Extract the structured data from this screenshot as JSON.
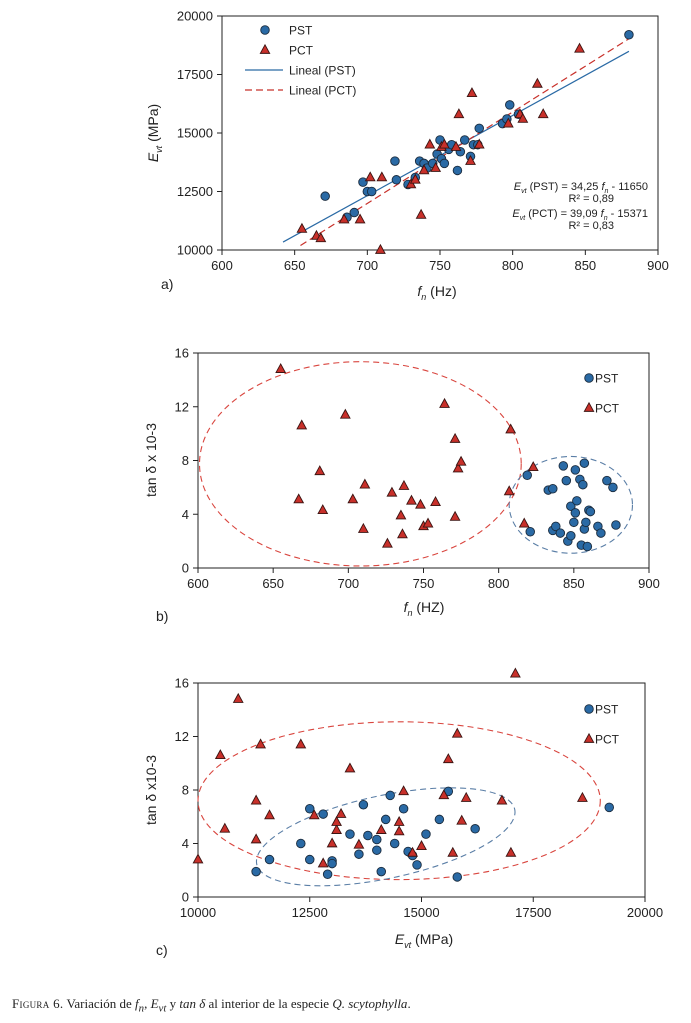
{
  "caption": {
    "label": "Figura 6.",
    "text_pre": " Variación de ",
    "fn": "f",
    "fn_sub": "n",
    "sep1": ", ",
    "evt": "E",
    "evt_sub": "vt",
    "sep2": " y ",
    "tand": "tan δ",
    "text_mid": " al interior de la especie ",
    "species": "Q. scytophylla",
    "end": "."
  },
  "colors": {
    "pst": "#2a6aa5",
    "pct": "#c8302a",
    "pst_ellipse": "#5a7ea6",
    "pct_ellipse": "#d9453e"
  },
  "chart_data": [
    {
      "id": "a",
      "panel_label": "a)",
      "type": "scatter",
      "xlabel": "f",
      "xlabel_sub": "n",
      "xlabel_unit": " (Hz)",
      "ylabel": "E",
      "ylabel_sub": "vt",
      "ylabel_unit": " (MPa)",
      "xlim": [
        600,
        900
      ],
      "ylim": [
        10000,
        20000
      ],
      "xticks": [
        600,
        650,
        700,
        750,
        800,
        850,
        900
      ],
      "yticks": [
        10000,
        12500,
        15000,
        17500,
        20000
      ],
      "legend": [
        {
          "label": "PST",
          "marker": "circle"
        },
        {
          "label": "PCT",
          "marker": "triangle"
        },
        {
          "label": "Lineal (PST)",
          "line": "solid"
        },
        {
          "label": "Lineal (PCT)",
          "line": "dashed"
        }
      ],
      "equations": [
        {
          "line1_a": "E",
          "line1_sub": "vt",
          "line1_b": " (PST) = 34,25 ",
          "line1_c": "f",
          "line1_sub2": "n",
          "line1_d": " - 11650",
          "line2": "R² = 0,89"
        },
        {
          "line1_a": "E",
          "line1_sub": "vt",
          "line1_b": " (PCT) = 39,09 ",
          "line1_c": "f",
          "line1_sub2": "n",
          "line1_d": " - 15371",
          "line2": "R² = 0,83"
        }
      ],
      "trendlines": [
        {
          "series": "PST",
          "slope": 34.25,
          "intercept": -11650,
          "x_range": [
            642,
            880
          ],
          "style": "solid"
        },
        {
          "series": "PCT",
          "slope": 39.09,
          "intercept": -15371,
          "x_range": [
            654,
            880
          ],
          "style": "dashed"
        }
      ],
      "series": [
        {
          "name": "PST",
          "marker": "circle",
          "points": [
            [
              671,
              12300
            ],
            [
              686,
              11400
            ],
            [
              691,
              11600
            ],
            [
              697,
              12900
            ],
            [
              700,
              12500
            ],
            [
              703,
              12500
            ],
            [
              719,
              13800
            ],
            [
              720,
              13000
            ],
            [
              728,
              12800
            ],
            [
              733,
              13100
            ],
            [
              736,
              13800
            ],
            [
              739,
              13700
            ],
            [
              741,
              13500
            ],
            [
              745,
              13700
            ],
            [
              748,
              14100
            ],
            [
              750,
              14700
            ],
            [
              751,
              13900
            ],
            [
              753,
              13700
            ],
            [
              756,
              14300
            ],
            [
              758,
              14500
            ],
            [
              762,
              13400
            ],
            [
              764,
              14200
            ],
            [
              767,
              14700
            ],
            [
              771,
              14000
            ],
            [
              773,
              14500
            ],
            [
              776,
              14500
            ],
            [
              777,
              15200
            ],
            [
              793,
              15400
            ],
            [
              796,
              15600
            ],
            [
              798,
              16200
            ],
            [
              804,
              15800
            ],
            [
              880,
              19200
            ]
          ]
        },
        {
          "name": "PCT",
          "marker": "triangle",
          "points": [
            [
              655,
              10900
            ],
            [
              665,
              10600
            ],
            [
              668,
              10500
            ],
            [
              684,
              11300
            ],
            [
              695,
              11300
            ],
            [
              702,
              13100
            ],
            [
              709,
              10000
            ],
            [
              710,
              13100
            ],
            [
              730,
              12800
            ],
            [
              733,
              13000
            ],
            [
              737,
              11500
            ],
            [
              739,
              13400
            ],
            [
              743,
              14500
            ],
            [
              747,
              13500
            ],
            [
              751,
              14400
            ],
            [
              753,
              14500
            ],
            [
              761,
              14400
            ],
            [
              763,
              15800
            ],
            [
              771,
              13800
            ],
            [
              772,
              16700
            ],
            [
              777,
              14500
            ],
            [
              797,
              15400
            ],
            [
              805,
              15800
            ],
            [
              807,
              15600
            ],
            [
              817,
              17100
            ],
            [
              821,
              15800
            ],
            [
              846,
              18600
            ]
          ]
        }
      ]
    },
    {
      "id": "b",
      "panel_label": "b)",
      "type": "scatter",
      "xlabel": "f",
      "xlabel_sub": "n",
      "xlabel_unit": " (HZ)",
      "ylabel": "tan δ  x 10-3",
      "xlim": [
        600,
        900
      ],
      "ylim": [
        0,
        16
      ],
      "xticks": [
        600,
        650,
        700,
        750,
        800,
        850,
        900
      ],
      "yticks": [
        0,
        4,
        8,
        12,
        16
      ],
      "legend": [
        {
          "label": "PST",
          "marker": "circle"
        },
        {
          "label": "PCT",
          "marker": "triangle"
        }
      ],
      "ellipses": [
        {
          "series": "PCT",
          "center": [
            708,
            7.75
          ],
          "rx": 107,
          "ry": 7.6,
          "rotate": 0
        },
        {
          "series": "PST",
          "center": [
            848,
            4.7
          ],
          "rx": 41,
          "ry": 3.6,
          "rotate": 0
        }
      ],
      "series": [
        {
          "name": "PST",
          "marker": "circle",
          "points": [
            [
              819,
              6.9
            ],
            [
              821,
              2.7
            ],
            [
              833,
              5.8
            ],
            [
              836,
              2.8
            ],
            [
              836,
              5.9
            ],
            [
              838,
              3.1
            ],
            [
              841,
              2.6
            ],
            [
              843,
              7.6
            ],
            [
              845,
              6.5
            ],
            [
              846,
              2.0
            ],
            [
              848,
              4.6
            ],
            [
              848,
              2.4
            ],
            [
              850,
              3.4
            ],
            [
              851,
              4.1
            ],
            [
              851,
              7.3
            ],
            [
              852,
              5.0
            ],
            [
              854,
              6.6
            ],
            [
              855,
              1.7
            ],
            [
              856,
              6.2
            ],
            [
              857,
              7.8
            ],
            [
              857,
              2.9
            ],
            [
              858,
              3.4
            ],
            [
              859,
              1.6
            ],
            [
              860,
              4.3
            ],
            [
              861,
              4.2
            ],
            [
              866,
              3.1
            ],
            [
              868,
              2.6
            ],
            [
              872,
              6.5
            ],
            [
              876,
              6.0
            ],
            [
              878,
              3.2
            ]
          ]
        },
        {
          "name": "PCT",
          "marker": "triangle",
          "points": [
            [
              655,
              14.8
            ],
            [
              667,
              5.1
            ],
            [
              669,
              10.6
            ],
            [
              681,
              7.2
            ],
            [
              683,
              4.3
            ],
            [
              698,
              11.4
            ],
            [
              703,
              5.1
            ],
            [
              710,
              2.9
            ],
            [
              711,
              6.2
            ],
            [
              726,
              1.8
            ],
            [
              729,
              5.6
            ],
            [
              735,
              3.9
            ],
            [
              736,
              2.5
            ],
            [
              737,
              6.1
            ],
            [
              742,
              5.0
            ],
            [
              748,
              4.7
            ],
            [
              750,
              3.1
            ],
            [
              753,
              3.3
            ],
            [
              758,
              4.9
            ],
            [
              764,
              12.2
            ],
            [
              771,
              9.6
            ],
            [
              771,
              3.8
            ],
            [
              773,
              7.4
            ],
            [
              775,
              7.9
            ],
            [
              807,
              5.7
            ],
            [
              808,
              10.3
            ],
            [
              817,
              3.3
            ],
            [
              823,
              7.5
            ]
          ]
        }
      ]
    },
    {
      "id": "c",
      "panel_label": "c)",
      "type": "scatter",
      "xlabel": "E",
      "xlabel_sub": "vt",
      "xlabel_unit": " (MPa)",
      "ylabel": "tan δ x10-3",
      "xlim": [
        10000,
        20000
      ],
      "ylim": [
        0,
        16
      ],
      "xticks": [
        10000,
        12500,
        15000,
        17500,
        20000
      ],
      "yticks": [
        0,
        4,
        8,
        12,
        16
      ],
      "legend": [
        {
          "label": "PST",
          "marker": "circle"
        },
        {
          "label": "PCT",
          "marker": "triangle"
        }
      ],
      "ellipses": [
        {
          "series": "PCT",
          "center": [
            14500,
            7.2
          ],
          "rx": 4500,
          "ry": 5.9,
          "rotate": 0
        },
        {
          "series": "PST",
          "center": [
            14200,
            4.5
          ],
          "rx": 2950,
          "ry": 3.1,
          "rotate": -12
        }
      ],
      "series": [
        {
          "name": "PST",
          "marker": "circle",
          "points": [
            [
              11300,
              1.9
            ],
            [
              11600,
              2.8
            ],
            [
              12300,
              4.0
            ],
            [
              12500,
              2.8
            ],
            [
              12500,
              6.6
            ],
            [
              12800,
              6.2
            ],
            [
              12900,
              1.7
            ],
            [
              13000,
              2.7
            ],
            [
              13000,
              2.5
            ],
            [
              13400,
              4.7
            ],
            [
              13600,
              3.2
            ],
            [
              13700,
              6.9
            ],
            [
              13800,
              4.6
            ],
            [
              14000,
              3.5
            ],
            [
              14000,
              4.3
            ],
            [
              14100,
              1.9
            ],
            [
              14200,
              5.8
            ],
            [
              14300,
              7.6
            ],
            [
              14400,
              4.0
            ],
            [
              14600,
              6.6
            ],
            [
              14700,
              3.4
            ],
            [
              14800,
              3.1
            ],
            [
              14900,
              2.4
            ],
            [
              15100,
              4.7
            ],
            [
              15400,
              5.8
            ],
            [
              15600,
              7.9
            ],
            [
              15800,
              1.5
            ],
            [
              16200,
              5.1
            ],
            [
              19200,
              6.7
            ]
          ]
        },
        {
          "name": "PCT",
          "marker": "triangle",
          "points": [
            [
              10000,
              2.8
            ],
            [
              10500,
              10.6
            ],
            [
              10600,
              5.1
            ],
            [
              10900,
              14.8
            ],
            [
              11300,
              4.3
            ],
            [
              11300,
              7.2
            ],
            [
              11400,
              11.4
            ],
            [
              11600,
              6.1
            ],
            [
              12300,
              11.4
            ],
            [
              12600,
              6.1
            ],
            [
              12800,
              2.5
            ],
            [
              13000,
              4.0
            ],
            [
              13100,
              5.0
            ],
            [
              13100,
              5.6
            ],
            [
              13200,
              6.2
            ],
            [
              13400,
              9.6
            ],
            [
              13600,
              3.9
            ],
            [
              14100,
              5.0
            ],
            [
              14500,
              4.9
            ],
            [
              14500,
              5.6
            ],
            [
              14600,
              7.9
            ],
            [
              14800,
              3.3
            ],
            [
              15000,
              3.8
            ],
            [
              15500,
              7.6
            ],
            [
              15600,
              10.3
            ],
            [
              15700,
              3.3
            ],
            [
              15800,
              12.2
            ],
            [
              15900,
              5.7
            ],
            [
              16000,
              7.4
            ],
            [
              16800,
              7.2
            ],
            [
              17000,
              3.3
            ],
            [
              17100,
              16.7
            ],
            [
              18600,
              7.4
            ]
          ]
        }
      ]
    }
  ]
}
